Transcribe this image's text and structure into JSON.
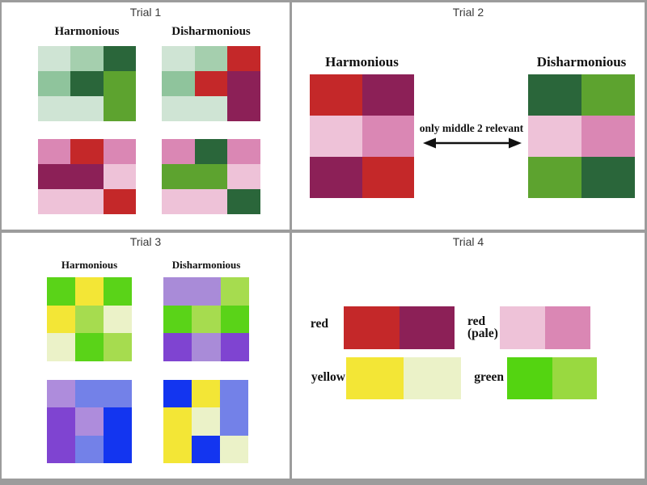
{
  "palette": {
    "paleGreen": "#cfe4d4",
    "lightGreen": "#a5cfae",
    "medGreen": "#8fc49c",
    "darkGreen": "#2a663a",
    "grassGreen": "#5da32f",
    "red": "#c42829",
    "darkMagenta": "#8c2057",
    "pink": "#da87b4",
    "palePink": "#eec2d8",
    "brightGreen": "#5ad318",
    "yellow": "#f3e636",
    "lightYellowGreen": "#a6dc4f",
    "paleCream": "#ebf2c8",
    "lavender": "#a98bd8",
    "purple": "#7f44d1",
    "periwinkle": "#7381e8",
    "mediumLavender": "#ae8cdc",
    "brightBlue": "#1335f0",
    "vividGreen": "#54d411",
    "yellowGreen": "#99d940"
  },
  "trial1": {
    "title": "Trial 1",
    "harmonious_label": "Harmonious",
    "disharmonious_label": "Disharmonious",
    "harmonious_green_grid": [
      [
        "paleGreen",
        "lightGreen",
        "darkGreen"
      ],
      [
        "medGreen",
        "darkGreen",
        "grassGreen"
      ],
      [
        "paleGreen",
        "paleGreen",
        "grassGreen"
      ]
    ],
    "disharmonious_green_grid": [
      [
        "paleGreen",
        "lightGreen",
        "red"
      ],
      [
        "medGreen",
        "red",
        "darkMagenta"
      ],
      [
        "paleGreen",
        "paleGreen",
        "darkMagenta"
      ]
    ],
    "harmonious_pink_grid": [
      [
        "pink",
        "red",
        "pink"
      ],
      [
        "darkMagenta",
        "darkMagenta",
        "palePink"
      ],
      [
        "palePink",
        "palePink",
        "red"
      ]
    ],
    "disharmonious_pink_grid": [
      [
        "pink",
        "darkGreen",
        "pink"
      ],
      [
        "grassGreen",
        "grassGreen",
        "palePink"
      ],
      [
        "palePink",
        "palePink",
        "darkGreen"
      ]
    ]
  },
  "trial2": {
    "title": "Trial 2",
    "harmonious_label": "Harmonious",
    "disharmonious_label": "Disharmonious",
    "annotation": "only middle 2 relevant",
    "harmonious_grid": [
      [
        "red",
        "darkMagenta"
      ],
      [
        "palePink",
        "pink"
      ],
      [
        "darkMagenta",
        "red"
      ]
    ],
    "disharmonious_grid": [
      [
        "darkGreen",
        "grassGreen"
      ],
      [
        "palePink",
        "pink"
      ],
      [
        "grassGreen",
        "darkGreen"
      ]
    ]
  },
  "trial3": {
    "title": "Trial 3",
    "harmonious_label": "Harmonious",
    "disharmonious_label": "Disharmonious",
    "harmonious_yellow_green_grid": [
      [
        "brightGreen",
        "yellow",
        "brightGreen"
      ],
      [
        "yellow",
        "lightYellowGreen",
        "paleCream"
      ],
      [
        "paleCream",
        "brightGreen",
        "lightYellowGreen"
      ]
    ],
    "disharmonious_purple_green_grid": [
      [
        "lavender",
        "lavender",
        "lightYellowGreen"
      ],
      [
        "brightGreen",
        "lightYellowGreen",
        "brightGreen"
      ],
      [
        "purple",
        "lavender",
        "purple"
      ]
    ],
    "harmonious_purple_blue_grid": [
      [
        "mediumLavender",
        "periwinkle",
        "periwinkle"
      ],
      [
        "purple",
        "mediumLavender",
        "brightBlue"
      ],
      [
        "purple",
        "periwinkle",
        "brightBlue"
      ]
    ],
    "disharmonious_blue_yellow_grid": [
      [
        "brightBlue",
        "yellow",
        "periwinkle"
      ],
      [
        "yellow",
        "paleCream",
        "periwinkle"
      ],
      [
        "yellow",
        "brightBlue",
        "paleCream"
      ]
    ]
  },
  "trial4": {
    "title": "Trial 4",
    "swatches": [
      {
        "label": "red",
        "colors": [
          "red",
          "darkMagenta"
        ]
      },
      {
        "label": "red\n(pale)",
        "colors": [
          "palePink",
          "pink"
        ]
      },
      {
        "label": "yellow",
        "colors": [
          "yellow",
          "paleCream"
        ]
      },
      {
        "label": "green",
        "colors": [
          "vividGreen",
          "yellowGreen"
        ]
      }
    ]
  }
}
